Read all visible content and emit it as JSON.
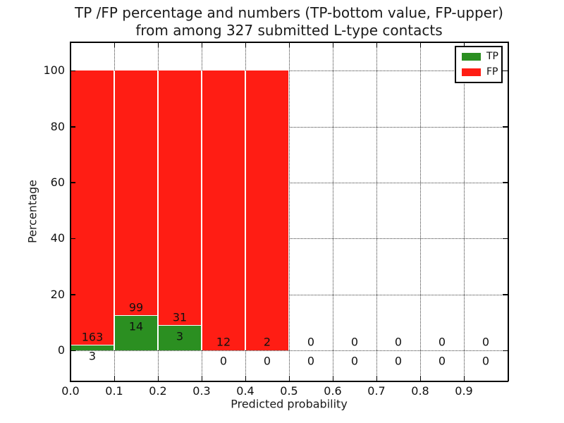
{
  "figure": {
    "title_line1": "TP /FP percentage and numbers (TP-bottom value, FP-upper)",
    "title_line2": "from among 327 submitted L-type contacts"
  },
  "chart_data": {
    "type": "bar",
    "stacked": true,
    "title": "TP /FP percentage and numbers (TP-bottom value, FP-upper) from among 327 submitted L-type contacts",
    "xlabel": "Predicted probability",
    "ylabel": "Percentage",
    "xlim": [
      0.0,
      1.0
    ],
    "ylim": [
      -10.8,
      110.1
    ],
    "x_ticks": [
      0.0,
      0.1,
      0.2,
      0.3,
      0.4,
      0.5,
      0.6,
      0.7,
      0.8,
      0.9
    ],
    "x_tick_labels": [
      "0.0",
      "0.1",
      "0.2",
      "0.3",
      "0.4",
      "0.5",
      "0.6",
      "0.7",
      "0.8",
      "0.9"
    ],
    "y_ticks": [
      0,
      20,
      40,
      60,
      80,
      100
    ],
    "y_tick_labels": [
      "0",
      "20",
      "40",
      "60",
      "80",
      "100"
    ],
    "grid": "dotted, horizontal at y ticks and vertical at x ticks, drawn below bars",
    "bin_width": 0.1,
    "total_contacts": 327,
    "categories": [
      "0.0-0.1",
      "0.1-0.2",
      "0.2-0.3",
      "0.3-0.4",
      "0.4-0.5",
      "0.5-0.6",
      "0.6-0.7",
      "0.7-0.8",
      "0.8-0.9",
      "0.9-1.0"
    ],
    "series": [
      {
        "name": "TP",
        "counts": [
          3,
          14,
          3,
          0,
          0,
          0,
          0,
          0,
          0,
          0
        ]
      },
      {
        "name": "FP",
        "counts": [
          163,
          99,
          31,
          12,
          2,
          0,
          0,
          0,
          0,
          0
        ]
      }
    ],
    "bins": [
      {
        "start": 0.0,
        "tp": 3,
        "fp": 163
      },
      {
        "start": 0.1,
        "tp": 14,
        "fp": 99
      },
      {
        "start": 0.2,
        "tp": 3,
        "fp": 31
      },
      {
        "start": 0.3,
        "tp": 0,
        "fp": 12
      },
      {
        "start": 0.4,
        "tp": 0,
        "fp": 2
      },
      {
        "start": 0.5,
        "tp": 0,
        "fp": 0
      },
      {
        "start": 0.6,
        "tp": 0,
        "fp": 0
      },
      {
        "start": 0.7,
        "tp": 0,
        "fp": 0
      },
      {
        "start": 0.8,
        "tp": 0,
        "fp": 0
      },
      {
        "start": 0.9,
        "tp": 0,
        "fp": 0
      }
    ],
    "bar_note": "each non-empty bin is a stacked bar totaling 100%: TP% green on bottom, FP% red on top; labels show raw counts (FP count above green top, TP count below it)",
    "legend": {
      "position": "upper right",
      "entries": [
        {
          "label": "TP",
          "color": "#2b8f21"
        },
        {
          "label": "FP",
          "color": "#ff1d14"
        }
      ]
    }
  },
  "colors": {
    "tp_green": "#2b8f21",
    "fp_red": "#ff1d14",
    "background": "#ffffff",
    "text": "#111111"
  }
}
